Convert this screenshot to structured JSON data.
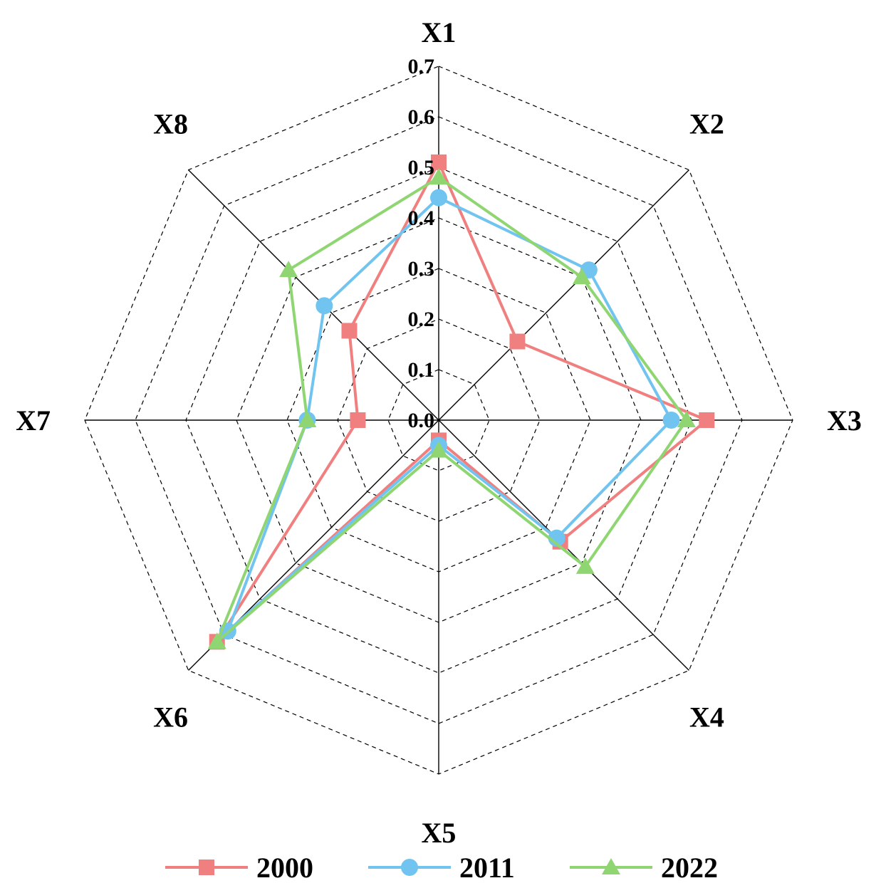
{
  "chart_data": {
    "type": "radar",
    "axes": [
      "X1",
      "X2",
      "X3",
      "X4",
      "X5",
      "X6",
      "X7",
      "X8"
    ],
    "rlim": [
      0,
      0.7
    ],
    "ticks": [
      "0.0",
      "0.1",
      "0.2",
      "0.3",
      "0.4",
      "0.5",
      "0.6",
      "0.7"
    ],
    "tick_values": [
      0,
      0.1,
      0.2,
      0.3,
      0.4,
      0.5,
      0.6,
      0.7
    ],
    "grid": true,
    "legend_position": "bottom",
    "series": [
      {
        "name": "2000",
        "color": "#f08080",
        "marker": "square",
        "values": [
          0.51,
          0.22,
          0.53,
          0.34,
          0.04,
          0.62,
          0.16,
          0.25
        ]
      },
      {
        "name": "2011",
        "color": "#72c4f0",
        "marker": "circle",
        "values": [
          0.44,
          0.42,
          0.46,
          0.33,
          0.05,
          0.59,
          0.26,
          0.32
        ]
      },
      {
        "name": "2022",
        "color": "#8fd672",
        "marker": "triangle",
        "values": [
          0.48,
          0.4,
          0.49,
          0.41,
          0.06,
          0.62,
          0.26,
          0.42
        ]
      }
    ]
  }
}
